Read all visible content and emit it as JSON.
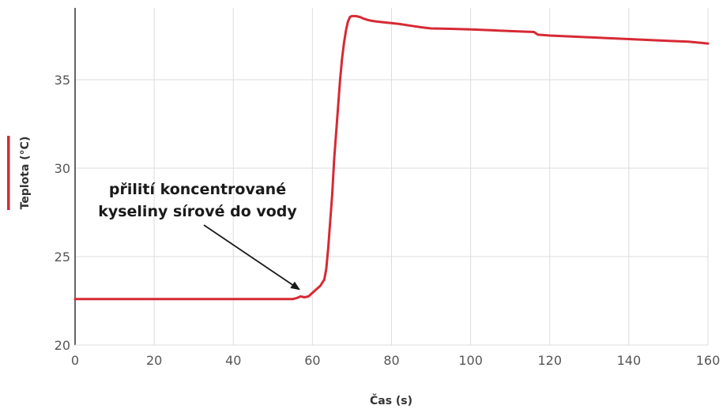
{
  "chart_data": {
    "type": "line",
    "title": "",
    "xlabel": "Čas (s)",
    "ylabel": "Teplota (°C)",
    "xlim": [
      0,
      160
    ],
    "ylim": [
      20,
      39
    ],
    "xticks": [
      0,
      20,
      40,
      60,
      80,
      100,
      120,
      140,
      160
    ],
    "yticks": [
      20,
      25,
      30,
      35
    ],
    "grid": true,
    "legend": "none",
    "series": [
      {
        "color": "#d62a35",
        "x": [
          0,
          10,
          20,
          30,
          40,
          50,
          55,
          56,
          57,
          58,
          59,
          60,
          61,
          62,
          63,
          63.5,
          64,
          64.5,
          65,
          65.5,
          66,
          66.5,
          67,
          67.5,
          68,
          68.5,
          69,
          69.5,
          70,
          71,
          72,
          73,
          74,
          75,
          76,
          78,
          80,
          82,
          85,
          88,
          90,
          95,
          100,
          105,
          110,
          116,
          117,
          120,
          125,
          130,
          135,
          140,
          145,
          150,
          155,
          160
        ],
        "y": [
          22.6,
          22.6,
          22.6,
          22.6,
          22.6,
          22.6,
          22.6,
          22.65,
          22.75,
          22.7,
          22.75,
          22.95,
          23.15,
          23.35,
          23.7,
          24.3,
          25.5,
          27.0,
          28.5,
          30.5,
          32.0,
          33.5,
          35.0,
          36.2,
          37.1,
          37.8,
          38.3,
          38.55,
          38.6,
          38.6,
          38.55,
          38.45,
          38.38,
          38.33,
          38.3,
          38.25,
          38.2,
          38.15,
          38.05,
          37.95,
          37.9,
          37.88,
          37.85,
          37.8,
          37.75,
          37.7,
          37.55,
          37.5,
          37.45,
          37.4,
          37.35,
          37.3,
          37.25,
          37.2,
          37.15,
          37.05
        ]
      }
    ],
    "annotations": [
      {
        "lines": [
          "přilití koncentrované",
          "kyseliny sírové do vody"
        ],
        "target": [
          57,
          22.8
        ]
      }
    ]
  },
  "legend_swatch_color": "#d62a35"
}
